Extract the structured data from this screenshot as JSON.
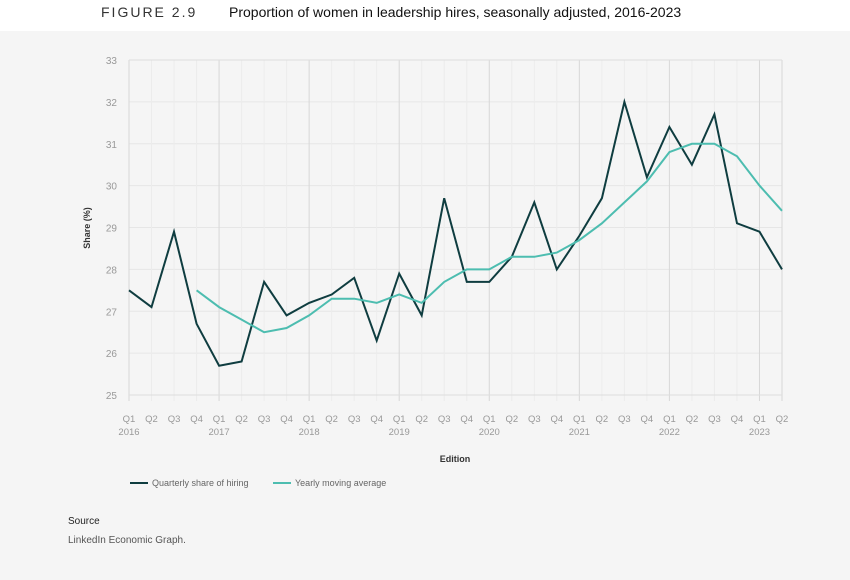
{
  "figure": {
    "label": "FIGURE 2.9",
    "title": "Proportion of women in leadership hires, seasonally adjusted, 2016-2023"
  },
  "source": {
    "heading": "Source",
    "text": "LinkedIn Economic Graph."
  },
  "chart_data": {
    "type": "line",
    "xlabel": "Edition",
    "ylabel": "Share (%)",
    "ylim": [
      25,
      33
    ],
    "yticks": [
      25,
      26,
      27,
      28,
      29,
      30,
      31,
      32,
      33
    ],
    "grid": true,
    "legend_position": "bottom-left",
    "x_quarters": [
      "Q1",
      "Q2",
      "Q3",
      "Q4",
      "Q1",
      "Q2",
      "Q3",
      "Q4",
      "Q1",
      "Q2",
      "Q3",
      "Q4",
      "Q1",
      "Q2",
      "Q3",
      "Q4",
      "Q1",
      "Q2",
      "Q3",
      "Q4",
      "Q1",
      "Q2",
      "Q3",
      "Q4",
      "Q1",
      "Q2",
      "Q3",
      "Q4",
      "Q1",
      "Q2"
    ],
    "x_years": [
      "2016",
      "2017",
      "2018",
      "2019",
      "2020",
      "2021",
      "2022",
      "2023"
    ],
    "series": [
      {
        "name": "Quarterly share of hiring",
        "color": "#0f3d40",
        "values": [
          27.5,
          27.1,
          28.9,
          26.7,
          25.7,
          25.8,
          27.7,
          26.9,
          27.2,
          27.4,
          27.8,
          26.3,
          27.9,
          26.9,
          29.7,
          27.7,
          27.7,
          28.3,
          29.6,
          28.0,
          28.8,
          29.7,
          32.0,
          30.2,
          31.4,
          30.5,
          31.7,
          29.1,
          28.9,
          28.0
        ]
      },
      {
        "name": "Yearly moving average",
        "color": "#4dbdb0",
        "values": [
          null,
          null,
          null,
          27.5,
          27.1,
          26.8,
          26.5,
          26.6,
          26.9,
          27.3,
          27.3,
          27.2,
          27.4,
          27.2,
          27.7,
          28.0,
          28.0,
          28.3,
          28.3,
          28.4,
          28.7,
          29.1,
          29.6,
          30.1,
          30.8,
          31.0,
          31.0,
          30.7,
          30.0,
          29.4
        ]
      }
    ]
  }
}
